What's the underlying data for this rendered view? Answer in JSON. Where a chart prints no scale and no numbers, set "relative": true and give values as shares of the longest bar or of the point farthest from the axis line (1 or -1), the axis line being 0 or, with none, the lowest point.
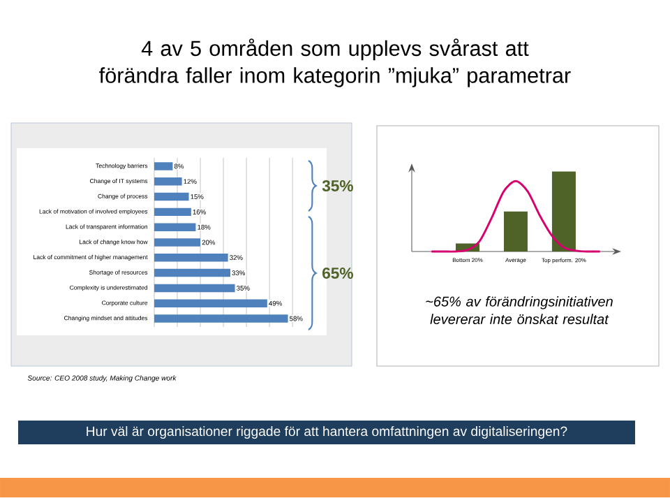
{
  "chart_data": [
    {
      "type": "bar",
      "orientation": "horizontal",
      "title": "4 av 5 områden som upplevs svårast att förändra faller inom kategorin ”mjuka” parametrar",
      "categories": [
        "Technology barriers",
        "Change of IT systems",
        "Change of process",
        "Lack of motivation of involved employees",
        "Lack of transparent information",
        "Lack of change know how",
        "Lack of commitment of higher management",
        "Shortage of resources",
        "Complexity is underestimated",
        "Corporate culture",
        "Changing mindset and attitudes"
      ],
      "values": [
        8,
        12,
        15,
        16,
        18,
        20,
        32,
        33,
        35,
        49,
        58
      ],
      "value_labels": [
        "8%",
        "12%",
        "15%",
        "16%",
        "18%",
        "20%",
        "32%",
        "33%",
        "35%",
        "49%",
        "58%"
      ],
      "color": "#4f81bd",
      "xlim": [
        0,
        60
      ],
      "xticks": [
        {
          "value": 0,
          "label": null
        },
        {
          "value": 10,
          "label": null
        },
        {
          "value": 20,
          "label": null
        },
        {
          "value": 30,
          "label": null
        },
        {
          "value": 40,
          "label": null
        },
        {
          "value": 50,
          "label": null
        },
        {
          "value": 60,
          "label": null
        }
      ],
      "grid": "x",
      "tick_labels": "y",
      "annotations": [
        "35%",
        "65%",
        "Source: CEO 2008 study, Making Change work",
        "Hur väl är organisationer riggade för att hantera omfattningen av digitaliseringen?"
      ]
    },
    {
      "type": "bar",
      "relative": true,
      "tick_labels": "x",
      "categories": [
        null,
        null,
        null,
        "Bottom 20%",
        null,
        null,
        null,
        "Average",
        null,
        null,
        null,
        "Top perform. 20%",
        null,
        null,
        null
      ],
      "series": [
        {
          "type": "bar",
          "color": "#4f6228",
          "values": [
            null,
            null,
            null,
            0.1,
            null,
            null,
            null,
            0.5,
            null,
            null,
            null,
            1,
            null,
            null,
            null
          ]
        },
        {
          "type": "line",
          "color": "#d6006f",
          "values": [
            0,
            0,
            0,
            0.02,
            0.13,
            0.42,
            0.75,
            0.88,
            0.75,
            0.45,
            0.2,
            0.05,
            0.01,
            0,
            0
          ]
        }
      ],
      "annotations": [
        "~65% av förändringsinitiativen levererar inte önskat resultat"
      ]
    }
  ]
}
